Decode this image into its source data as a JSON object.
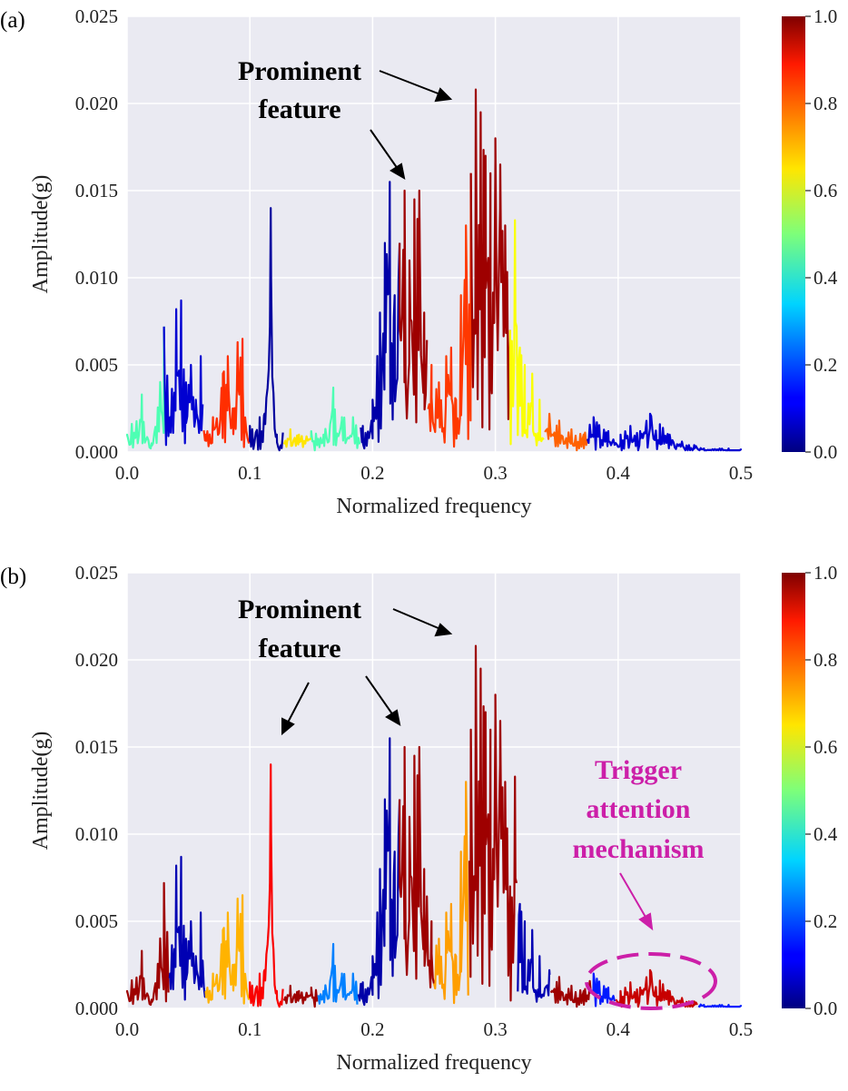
{
  "chart_data": [
    {
      "type": "line",
      "panel_label": "(a)",
      "xlabel": "Normalized frequency",
      "ylabel": "Amplitude(g)",
      "xlim": [
        0.0,
        0.5
      ],
      "ylim": [
        0.0,
        0.025
      ],
      "xticks": [
        "0.0",
        "0.1",
        "0.2",
        "0.3",
        "0.4",
        "0.5"
      ],
      "yticks": [
        "0.000",
        "0.005",
        "0.010",
        "0.015",
        "0.020",
        "0.025"
      ],
      "grid": true,
      "colorbar": {
        "ticks": [
          "0.0",
          "0.2",
          "0.4",
          "0.6",
          "0.8",
          "1.0"
        ],
        "colormap": "jet",
        "range": [
          0,
          1
        ]
      },
      "annotations": [
        {
          "lines": [
            "Prominent",
            "feature"
          ],
          "color": "#000000"
        }
      ],
      "spectrum_peaks": [
        [
          0.0,
          0.001
        ],
        [
          0.012,
          0.0033
        ],
        [
          0.02,
          0.0005
        ],
        [
          0.03,
          0.0072
        ],
        [
          0.035,
          0.002
        ],
        [
          0.04,
          0.0082
        ],
        [
          0.044,
          0.0087
        ],
        [
          0.048,
          0.004
        ],
        [
          0.052,
          0.005
        ],
        [
          0.056,
          0.003
        ],
        [
          0.06,
          0.0055
        ],
        [
          0.064,
          0.001
        ],
        [
          0.07,
          0.002
        ],
        [
          0.078,
          0.0045
        ],
        [
          0.082,
          0.0055
        ],
        [
          0.086,
          0.0025
        ],
        [
          0.09,
          0.0063
        ],
        [
          0.094,
          0.0065
        ],
        [
          0.1,
          0.0015
        ],
        [
          0.108,
          0.002
        ],
        [
          0.112,
          0.0022
        ],
        [
          0.117,
          0.014
        ],
        [
          0.122,
          0.001
        ],
        [
          0.133,
          0.0013
        ],
        [
          0.14,
          0.001
        ],
        [
          0.15,
          0.0012
        ],
        [
          0.16,
          0.001
        ],
        [
          0.168,
          0.0037
        ],
        [
          0.175,
          0.002
        ],
        [
          0.184,
          0.002
        ],
        [
          0.192,
          0.0015
        ],
        [
          0.2,
          0.003
        ],
        [
          0.206,
          0.008
        ],
        [
          0.21,
          0.012
        ],
        [
          0.214,
          0.0155
        ],
        [
          0.218,
          0.009
        ],
        [
          0.222,
          0.012
        ],
        [
          0.226,
          0.015
        ],
        [
          0.23,
          0.011
        ],
        [
          0.234,
          0.0145
        ],
        [
          0.238,
          0.015
        ],
        [
          0.242,
          0.008
        ],
        [
          0.248,
          0.005
        ],
        [
          0.254,
          0.004
        ],
        [
          0.26,
          0.0055
        ],
        [
          0.264,
          0.006
        ],
        [
          0.268,
          0.003
        ],
        [
          0.272,
          0.009
        ],
        [
          0.276,
          0.013
        ],
        [
          0.28,
          0.016
        ],
        [
          0.284,
          0.0208
        ],
        [
          0.288,
          0.0195
        ],
        [
          0.292,
          0.017
        ],
        [
          0.296,
          0.016
        ],
        [
          0.3,
          0.018
        ],
        [
          0.304,
          0.0165
        ],
        [
          0.308,
          0.013
        ],
        [
          0.312,
          0.007
        ],
        [
          0.316,
          0.0133
        ],
        [
          0.32,
          0.006
        ],
        [
          0.324,
          0.005
        ],
        [
          0.33,
          0.0045
        ],
        [
          0.336,
          0.003
        ],
        [
          0.344,
          0.0022
        ],
        [
          0.352,
          0.0018
        ],
        [
          0.362,
          0.0013
        ],
        [
          0.372,
          0.001
        ],
        [
          0.38,
          0.002
        ],
        [
          0.392,
          0.0012
        ],
        [
          0.402,
          0.001
        ],
        [
          0.41,
          0.0015
        ],
        [
          0.418,
          0.0012
        ],
        [
          0.426,
          0.0022
        ],
        [
          0.434,
          0.0016
        ],
        [
          0.442,
          0.001
        ],
        [
          0.452,
          0.0006
        ],
        [
          0.462,
          0.0004
        ],
        [
          0.47,
          0.0002
        ],
        [
          0.49,
          0.0002
        ],
        [
          0.5,
          0.0002
        ]
      ],
      "color_segments": [
        [
          0.0,
          0.03,
          0.45
        ],
        [
          0.03,
          0.062,
          0.08
        ],
        [
          0.062,
          0.1,
          0.83
        ],
        [
          0.1,
          0.127,
          0.03
        ],
        [
          0.127,
          0.15,
          0.65
        ],
        [
          0.15,
          0.19,
          0.45
        ],
        [
          0.19,
          0.222,
          0.04
        ],
        [
          0.222,
          0.245,
          0.97
        ],
        [
          0.245,
          0.28,
          0.82
        ],
        [
          0.28,
          0.312,
          0.97
        ],
        [
          0.312,
          0.34,
          0.62
        ],
        [
          0.34,
          0.375,
          0.78
        ],
        [
          0.375,
          0.5,
          0.08
        ]
      ]
    },
    {
      "type": "line",
      "panel_label": "(b)",
      "xlabel": "Normalized frequency",
      "ylabel": "Amplitude(g)",
      "xlim": [
        0.0,
        0.5
      ],
      "ylim": [
        0.0,
        0.025
      ],
      "xticks": [
        "0.0",
        "0.1",
        "0.2",
        "0.3",
        "0.4",
        "0.5"
      ],
      "yticks": [
        "0.000",
        "0.005",
        "0.010",
        "0.015",
        "0.020",
        "0.025"
      ],
      "grid": true,
      "colorbar": {
        "ticks": [
          "0.0",
          "0.2",
          "0.4",
          "0.6",
          "0.8",
          "1.0"
        ],
        "colormap": "jet",
        "range": [
          0,
          1
        ]
      },
      "annotations": [
        {
          "lines": [
            "Prominent",
            "feature"
          ],
          "color": "#000000"
        },
        {
          "lines": [
            "Trigger",
            "attention",
            "mechanism"
          ],
          "color": "#cc1fa8"
        }
      ],
      "color_segments": [
        [
          0.0,
          0.034,
          0.97
        ],
        [
          0.034,
          0.064,
          0.05
        ],
        [
          0.064,
          0.1,
          0.7
        ],
        [
          0.1,
          0.127,
          0.88
        ],
        [
          0.127,
          0.155,
          0.97
        ],
        [
          0.155,
          0.188,
          0.25
        ],
        [
          0.188,
          0.222,
          0.04
        ],
        [
          0.222,
          0.25,
          0.97
        ],
        [
          0.25,
          0.278,
          0.72
        ],
        [
          0.278,
          0.318,
          0.97
        ],
        [
          0.318,
          0.345,
          0.05
        ],
        [
          0.345,
          0.378,
          0.97
        ],
        [
          0.378,
          0.398,
          0.15
        ],
        [
          0.398,
          0.465,
          0.93
        ],
        [
          0.465,
          0.5,
          0.15
        ]
      ]
    }
  ]
}
